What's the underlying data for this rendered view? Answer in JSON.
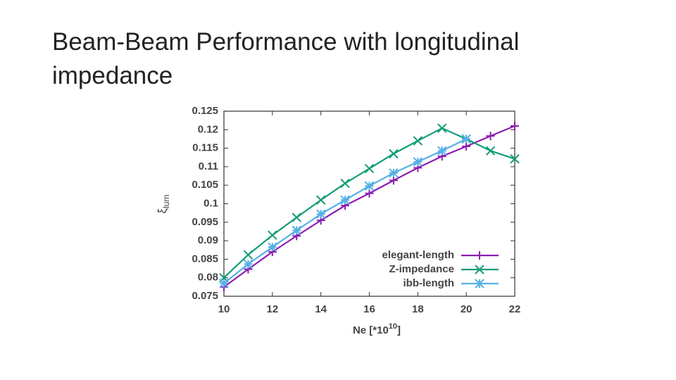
{
  "chart_data": {
    "type": "line",
    "title": "Beam-Beam Performance with longitudinal impedance",
    "xlabel": "Ne [*10",
    "xlabel_sup": "10",
    "xlabel_end": "]",
    "ylabel": "ξ",
    "ylabel_sub": "lum",
    "x": [
      10,
      11,
      12,
      13,
      14,
      15,
      16,
      17,
      18,
      19,
      20,
      21,
      22
    ],
    "xlim": [
      10,
      22
    ],
    "xticks": [
      10,
      12,
      14,
      16,
      18,
      20,
      22
    ],
    "ylim": [
      0.075,
      0.125
    ],
    "yticks": [
      0.075,
      0.08,
      0.085,
      0.09,
      0.095,
      0.1,
      0.105,
      0.11,
      0.115,
      0.12,
      0.125
    ],
    "grid": false,
    "legend": "lower right",
    "series": [
      {
        "name": "elegant-length",
        "color": "#8b1fb0",
        "marker": "plus",
        "values": [
          0.0775,
          0.0823,
          0.087,
          0.0913,
          0.0955,
          0.0995,
          0.1028,
          0.1063,
          0.1097,
          0.1128,
          0.1155,
          0.1183,
          0.121
        ]
      },
      {
        "name": "Z-impedance",
        "color": "#119c76",
        "marker": "cross",
        "values": [
          0.08,
          0.0862,
          0.0915,
          0.0963,
          0.101,
          0.1055,
          0.1095,
          0.1135,
          0.117,
          0.1204,
          0.1175,
          0.1143,
          0.1121
        ]
      },
      {
        "name": "ibb-length",
        "color": "#56b0e6",
        "marker": "star",
        "values": [
          0.0785,
          0.0837,
          0.0883,
          0.0928,
          0.0972,
          0.101,
          0.1048,
          0.1083,
          0.1113,
          0.1143,
          0.1175,
          null,
          null
        ]
      }
    ]
  }
}
